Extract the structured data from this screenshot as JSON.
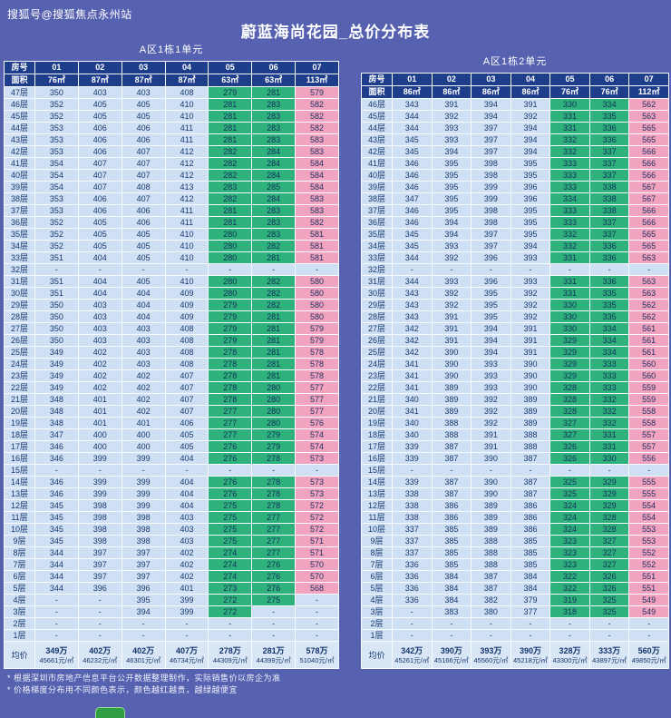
{
  "page": {
    "watermark": "搜狐号@搜狐焦点永州站",
    "title": "蔚蓝海尚花园_总价分布表"
  },
  "colors": {
    "background": "#5661b0",
    "header_bg": "#1e3e8c",
    "cell_blue": "#cfe0f4",
    "cell_green": "#2fb17c",
    "cell_pink": "#f2a3c0",
    "avg_bg": "#d9e6f6"
  },
  "notes": [
    "* 根据深圳市房地产信息平台公开数据整理制作，实际销售价以房企为准",
    "* 价格梯度分布用不同颜色表示，颜色越红越贵，越绿越便宜"
  ],
  "chart_data": [
    {
      "type": "table",
      "title": "A区1栋1单元",
      "room_header": "房号",
      "area_header": "面积",
      "avg_header": "均价",
      "rooms": [
        "01",
        "02",
        "03",
        "04",
        "05",
        "06",
        "07"
      ],
      "areas": [
        "76㎡",
        "87㎡",
        "87㎡",
        "87㎡",
        "63㎡",
        "63㎡",
        "113㎡"
      ],
      "floors": [
        "47层",
        "46层",
        "45层",
        "44层",
        "43层",
        "42层",
        "41层",
        "40层",
        "39层",
        "38层",
        "37层",
        "36层",
        "35层",
        "34层",
        "33层",
        "32层",
        "31层",
        "30层",
        "29层",
        "28层",
        "27层",
        "26层",
        "25层",
        "24层",
        "23层",
        "22层",
        "21层",
        "20层",
        "19层",
        "18层",
        "17层",
        "16层",
        "15层",
        "14层",
        "13层",
        "12层",
        "11层",
        "10层",
        "9层",
        "8层",
        "7层",
        "6层",
        "5层",
        "4层",
        "3层",
        "2层",
        "1层"
      ],
      "values": [
        [
          "350",
          "403",
          "403",
          "408",
          "279",
          "281",
          "579"
        ],
        [
          "352",
          "405",
          "405",
          "410",
          "281",
          "283",
          "582"
        ],
        [
          "352",
          "405",
          "405",
          "410",
          "281",
          "283",
          "582"
        ],
        [
          "353",
          "406",
          "406",
          "411",
          "281",
          "283",
          "582"
        ],
        [
          "353",
          "406",
          "406",
          "411",
          "281",
          "283",
          "583"
        ],
        [
          "353",
          "406",
          "407",
          "412",
          "282",
          "284",
          "583"
        ],
        [
          "354",
          "407",
          "407",
          "412",
          "282",
          "284",
          "584"
        ],
        [
          "354",
          "407",
          "407",
          "412",
          "282",
          "284",
          "584"
        ],
        [
          "354",
          "407",
          "408",
          "413",
          "283",
          "285",
          "584"
        ],
        [
          "353",
          "406",
          "407",
          "412",
          "282",
          "284",
          "583"
        ],
        [
          "353",
          "406",
          "406",
          "411",
          "281",
          "283",
          "583"
        ],
        [
          "352",
          "405",
          "406",
          "411",
          "281",
          "283",
          "582"
        ],
        [
          "352",
          "405",
          "405",
          "410",
          "280",
          "283",
          "581"
        ],
        [
          "352",
          "405",
          "405",
          "410",
          "280",
          "282",
          "581"
        ],
        [
          "351",
          "404",
          "405",
          "410",
          "280",
          "281",
          "581"
        ],
        [
          "-",
          "-",
          "-",
          "-",
          "-",
          "-",
          "-"
        ],
        [
          "351",
          "404",
          "405",
          "410",
          "280",
          "282",
          "580"
        ],
        [
          "351",
          "404",
          "404",
          "409",
          "280",
          "282",
          "580"
        ],
        [
          "350",
          "403",
          "404",
          "409",
          "279",
          "282",
          "580"
        ],
        [
          "350",
          "403",
          "404",
          "409",
          "279",
          "281",
          "580"
        ],
        [
          "350",
          "403",
          "403",
          "408",
          "279",
          "281",
          "579"
        ],
        [
          "350",
          "403",
          "403",
          "408",
          "279",
          "281",
          "579"
        ],
        [
          "349",
          "402",
          "403",
          "408",
          "278",
          "281",
          "578"
        ],
        [
          "349",
          "402",
          "403",
          "408",
          "278",
          "281",
          "578"
        ],
        [
          "349",
          "402",
          "402",
          "407",
          "278",
          "281",
          "578"
        ],
        [
          "349",
          "402",
          "402",
          "407",
          "278",
          "280",
          "577"
        ],
        [
          "348",
          "401",
          "402",
          "407",
          "278",
          "280",
          "577"
        ],
        [
          "348",
          "401",
          "402",
          "407",
          "277",
          "280",
          "577"
        ],
        [
          "348",
          "401",
          "401",
          "406",
          "277",
          "280",
          "576"
        ],
        [
          "347",
          "400",
          "400",
          "405",
          "277",
          "279",
          "574"
        ],
        [
          "346",
          "400",
          "400",
          "405",
          "276",
          "279",
          "574"
        ],
        [
          "346",
          "399",
          "399",
          "404",
          "276",
          "278",
          "573"
        ],
        [
          "-",
          "-",
          "-",
          "-",
          "-",
          "-",
          "-"
        ],
        [
          "346",
          "399",
          "399",
          "404",
          "276",
          "278",
          "573"
        ],
        [
          "346",
          "399",
          "399",
          "404",
          "276",
          "278",
          "573"
        ],
        [
          "345",
          "398",
          "399",
          "404",
          "275",
          "278",
          "572"
        ],
        [
          "345",
          "398",
          "398",
          "403",
          "275",
          "277",
          "572"
        ],
        [
          "345",
          "398",
          "398",
          "403",
          "275",
          "277",
          "572"
        ],
        [
          "345",
          "398",
          "398",
          "403",
          "275",
          "277",
          "571"
        ],
        [
          "344",
          "397",
          "397",
          "402",
          "274",
          "277",
          "571"
        ],
        [
          "344",
          "397",
          "397",
          "402",
          "274",
          "276",
          "570"
        ],
        [
          "344",
          "397",
          "397",
          "402",
          "274",
          "276",
          "570"
        ],
        [
          "344",
          "396",
          "396",
          "401",
          "273",
          "276",
          "568"
        ],
        [
          "-",
          "-",
          "395",
          "399",
          "272",
          "275",
          "-"
        ],
        [
          "-",
          "-",
          "394",
          "399",
          "272",
          "-",
          "-"
        ],
        [
          "-",
          "-",
          "-",
          "-",
          "-",
          "-",
          "-"
        ],
        [
          "-",
          "-",
          "-",
          "-",
          "-",
          "-",
          "-"
        ]
      ],
      "avg_prices": [
        "349万",
        "402万",
        "402万",
        "407万",
        "278万",
        "281万",
        "578万"
      ],
      "avg_unit_prices": [
        "45661元/㎡",
        "46232元/㎡",
        "46301元/㎡",
        "46734元/㎡",
        "44309元/㎡",
        "44399元/㎡",
        "51040元/㎡"
      ]
    },
    {
      "type": "table",
      "title": "A区1栋2单元",
      "room_header": "房号",
      "area_header": "面积",
      "avg_header": "均价",
      "rooms": [
        "01",
        "02",
        "03",
        "04",
        "05",
        "06",
        "07"
      ],
      "areas": [
        "86㎡",
        "86㎡",
        "86㎡",
        "86㎡",
        "76㎡",
        "76㎡",
        "112㎡"
      ],
      "floors": [
        "46层",
        "45层",
        "44层",
        "43层",
        "42层",
        "41层",
        "40层",
        "39层",
        "38层",
        "37层",
        "36层",
        "35层",
        "34层",
        "33层",
        "32层",
        "31层",
        "30层",
        "29层",
        "28层",
        "27层",
        "26层",
        "25层",
        "24层",
        "23层",
        "22层",
        "21层",
        "20层",
        "19层",
        "18层",
        "17层",
        "16层",
        "15层",
        "14层",
        "13层",
        "12层",
        "11层",
        "10层",
        "9层",
        "8层",
        "7层",
        "6层",
        "5层",
        "4层",
        "3层",
        "2层",
        "1层"
      ],
      "values": [
        [
          "343",
          "391",
          "394",
          "391",
          "330",
          "334",
          "562"
        ],
        [
          "344",
          "392",
          "394",
          "392",
          "331",
          "335",
          "563"
        ],
        [
          "344",
          "393",
          "397",
          "394",
          "331",
          "336",
          "565"
        ],
        [
          "345",
          "393",
          "397",
          "394",
          "332",
          "336",
          "565"
        ],
        [
          "345",
          "394",
          "397",
          "394",
          "332",
          "337",
          "566"
        ],
        [
          "346",
          "395",
          "398",
          "395",
          "333",
          "337",
          "566"
        ],
        [
          "346",
          "395",
          "398",
          "395",
          "333",
          "337",
          "566"
        ],
        [
          "346",
          "395",
          "399",
          "396",
          "333",
          "338",
          "567"
        ],
        [
          "347",
          "395",
          "399",
          "396",
          "334",
          "338",
          "567"
        ],
        [
          "346",
          "395",
          "398",
          "395",
          "333",
          "338",
          "566"
        ],
        [
          "346",
          "394",
          "398",
          "395",
          "333",
          "337",
          "566"
        ],
        [
          "345",
          "394",
          "397",
          "395",
          "332",
          "337",
          "565"
        ],
        [
          "345",
          "393",
          "397",
          "394",
          "332",
          "336",
          "565"
        ],
        [
          "344",
          "392",
          "396",
          "393",
          "331",
          "336",
          "563"
        ],
        [
          "-",
          "-",
          "-",
          "-",
          "-",
          "-",
          "-"
        ],
        [
          "344",
          "393",
          "396",
          "393",
          "331",
          "336",
          "563"
        ],
        [
          "343",
          "392",
          "395",
          "392",
          "331",
          "335",
          "563"
        ],
        [
          "343",
          "392",
          "395",
          "392",
          "330",
          "335",
          "562"
        ],
        [
          "343",
          "391",
          "395",
          "392",
          "330",
          "335",
          "562"
        ],
        [
          "342",
          "391",
          "394",
          "391",
          "330",
          "334",
          "561"
        ],
        [
          "342",
          "391",
          "394",
          "391",
          "329",
          "334",
          "561"
        ],
        [
          "342",
          "390",
          "394",
          "391",
          "329",
          "334",
          "561"
        ],
        [
          "341",
          "390",
          "393",
          "390",
          "329",
          "333",
          "560"
        ],
        [
          "341",
          "390",
          "393",
          "390",
          "329",
          "333",
          "560"
        ],
        [
          "341",
          "389",
          "393",
          "390",
          "328",
          "333",
          "559"
        ],
        [
          "340",
          "389",
          "392",
          "389",
          "328",
          "332",
          "559"
        ],
        [
          "341",
          "389",
          "392",
          "389",
          "328",
          "332",
          "558"
        ],
        [
          "340",
          "388",
          "392",
          "389",
          "327",
          "332",
          "558"
        ],
        [
          "340",
          "388",
          "391",
          "388",
          "327",
          "331",
          "557"
        ],
        [
          "339",
          "387",
          "391",
          "388",
          "326",
          "331",
          "557"
        ],
        [
          "339",
          "387",
          "390",
          "387",
          "326",
          "330",
          "556"
        ],
        [
          "-",
          "-",
          "-",
          "-",
          "-",
          "-",
          "-"
        ],
        [
          "339",
          "387",
          "390",
          "387",
          "325",
          "329",
          "555"
        ],
        [
          "338",
          "387",
          "390",
          "387",
          "325",
          "329",
          "555"
        ],
        [
          "338",
          "386",
          "389",
          "386",
          "324",
          "329",
          "554"
        ],
        [
          "338",
          "386",
          "389",
          "386",
          "324",
          "328",
          "554"
        ],
        [
          "337",
          "385",
          "389",
          "386",
          "324",
          "328",
          "553"
        ],
        [
          "337",
          "385",
          "388",
          "385",
          "323",
          "327",
          "553"
        ],
        [
          "337",
          "385",
          "388",
          "385",
          "323",
          "327",
          "552"
        ],
        [
          "336",
          "385",
          "388",
          "385",
          "323",
          "327",
          "552"
        ],
        [
          "336",
          "384",
          "387",
          "384",
          "322",
          "326",
          "551"
        ],
        [
          "336",
          "384",
          "387",
          "384",
          "322",
          "326",
          "551"
        ],
        [
          "336",
          "384",
          "382",
          "379",
          "319",
          "325",
          "549"
        ],
        [
          "-",
          "383",
          "380",
          "377",
          "318",
          "325",
          "549"
        ],
        [
          "-",
          "-",
          "-",
          "-",
          "-",
          "-",
          "-"
        ],
        [
          "-",
          "-",
          "-",
          "-",
          "-",
          "-",
          "-"
        ]
      ],
      "avg_prices": [
        "342万",
        "390万",
        "393万",
        "390万",
        "328万",
        "333万",
        "560万"
      ],
      "avg_unit_prices": [
        "45261元/㎡",
        "45166元/㎡",
        "45560元/㎡",
        "45218元/㎡",
        "43300元/㎡",
        "43897元/㎡",
        "49850元/㎡"
      ]
    }
  ]
}
